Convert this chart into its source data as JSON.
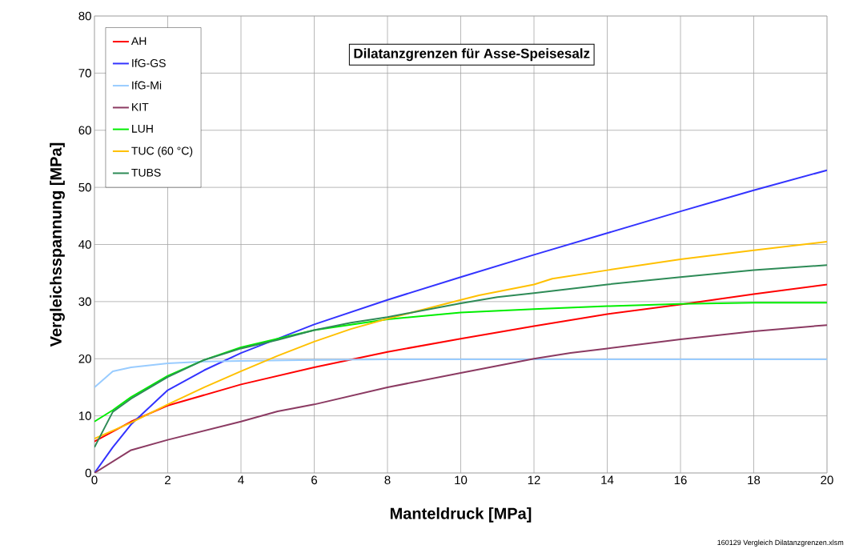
{
  "chart_data": {
    "type": "line",
    "title": "Dilatanzgrenzen für Asse-Speisesalz",
    "xlabel": "Manteldruck [MPa]",
    "ylabel": "Vergleichsspannung [MPa]",
    "xlim": [
      0,
      20
    ],
    "ylim": [
      0,
      80
    ],
    "xticks": [
      0,
      2,
      4,
      6,
      8,
      10,
      12,
      14,
      16,
      18,
      20
    ],
    "yticks": [
      0,
      10,
      20,
      30,
      40,
      50,
      60,
      70,
      80
    ],
    "grid": true,
    "legend": "top left",
    "marker": "none",
    "line_style": "solid",
    "annotations": [
      "160129 Vergleich Dilatanzgrenzen.xlsm"
    ],
    "series": [
      {
        "name": "AH",
        "color": "#ff0000",
        "x": [
          0,
          1,
          2,
          4,
          6,
          8,
          10,
          12,
          14,
          16,
          18,
          20
        ],
        "values": [
          5.5,
          9,
          11.8,
          15.5,
          18.5,
          21.2,
          23.5,
          25.7,
          27.8,
          29.5,
          31.3,
          33
        ]
      },
      {
        "name": "IfG-GS",
        "color": "#3333ff",
        "x": [
          0,
          0.5,
          1,
          2,
          3,
          4,
          6,
          8,
          10,
          12,
          14,
          16,
          18,
          20
        ],
        "values": [
          0,
          4.5,
          8.5,
          14.5,
          18,
          21,
          26,
          30.3,
          34.3,
          38.2,
          42,
          45.8,
          49.5,
          53
        ]
      },
      {
        "name": "IfG-Mi",
        "color": "#99ccff",
        "x": [
          0,
          0.5,
          1,
          2,
          3,
          4,
          6,
          8,
          20
        ],
        "values": [
          15,
          17.8,
          18.5,
          19.2,
          19.5,
          19.6,
          19.8,
          19.9,
          19.9
        ]
      },
      {
        "name": "KIT",
        "color": "#8b3a62",
        "x": [
          0,
          1,
          2,
          4,
          5,
          6,
          8,
          10,
          12,
          13,
          14,
          16,
          18,
          20
        ],
        "values": [
          0,
          4,
          5.8,
          9,
          10.8,
          12,
          15,
          17.5,
          20,
          21,
          21.8,
          23.4,
          24.8,
          25.9
        ]
      },
      {
        "name": "LUH",
        "color": "#00ee00",
        "x": [
          0,
          0.5,
          1,
          2,
          3,
          4,
          5,
          6,
          8,
          10,
          12,
          14,
          16,
          18,
          20
        ],
        "values": [
          9,
          11,
          13.3,
          17,
          19.8,
          22,
          23.5,
          25,
          26.9,
          28.1,
          28.7,
          29.2,
          29.6,
          29.8,
          29.8
        ]
      },
      {
        "name": "TUC (60 °C)",
        "color": "#ffc000",
        "x": [
          0,
          1,
          2,
          3,
          4,
          5,
          6,
          7,
          8,
          10,
          10.5,
          12,
          12.5,
          14,
          16,
          18,
          20
        ],
        "values": [
          6,
          8.8,
          12,
          15,
          17.8,
          20.5,
          23,
          25.2,
          27,
          30.3,
          31.1,
          33,
          34,
          35.5,
          37.4,
          39,
          40.5
        ]
      },
      {
        "name": "TUBS",
        "color": "#2e8b57",
        "x": [
          0,
          0.5,
          1,
          2,
          3,
          4,
          5,
          6,
          7,
          8,
          10,
          11,
          12,
          14,
          16,
          18,
          20
        ],
        "values": [
          4.5,
          10.7,
          13,
          16.8,
          19.8,
          21.8,
          23.3,
          25,
          26.3,
          27.3,
          29.7,
          30.8,
          31.5,
          33,
          34.3,
          35.5,
          36.4
        ]
      }
    ]
  }
}
